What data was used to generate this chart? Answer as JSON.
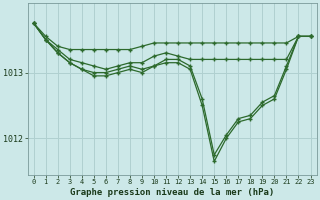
{
  "bg_color": "#cce8e8",
  "grid_color": "#b0d0d0",
  "line_color": "#2d6a2d",
  "title": "Graphe pression niveau de la mer (hPa)",
  "xlim": [
    -0.5,
    23.5
  ],
  "ylim": [
    1011.45,
    1014.05
  ],
  "yticks": [
    1012,
    1013
  ],
  "xticks": [
    0,
    1,
    2,
    3,
    4,
    5,
    6,
    7,
    8,
    9,
    10,
    11,
    12,
    13,
    14,
    15,
    16,
    17,
    18,
    19,
    20,
    21,
    22,
    23
  ],
  "series": [
    {
      "x": [
        0,
        1,
        2,
        3,
        4,
        5,
        6,
        7,
        8,
        9,
        10,
        11,
        12,
        13,
        14,
        15,
        16,
        17,
        18,
        19,
        20,
        21,
        22,
        23
      ],
      "y": [
        1013.75,
        1013.55,
        1013.4,
        1013.35,
        1013.35,
        1013.35,
        1013.35,
        1013.35,
        1013.35,
        1013.4,
        1013.45,
        1013.45,
        1013.45,
        1013.45,
        1013.45,
        1013.45,
        1013.45,
        1013.45,
        1013.45,
        1013.45,
        1013.45,
        1013.45,
        1013.55,
        1013.55
      ]
    },
    {
      "x": [
        0,
        1,
        2,
        3,
        4,
        5,
        6,
        7,
        8,
        9,
        10,
        11,
        12,
        13,
        14,
        15,
        16,
        17,
        18,
        19,
        20,
        21,
        22,
        23
      ],
      "y": [
        1013.75,
        1013.5,
        1013.35,
        1013.2,
        1013.15,
        1013.1,
        1013.05,
        1013.1,
        1013.15,
        1013.15,
        1013.25,
        1013.3,
        1013.25,
        1013.2,
        1013.2,
        1013.2,
        1013.2,
        1013.2,
        1013.2,
        1013.2,
        1013.2,
        1013.2,
        1013.55,
        1013.55
      ]
    },
    {
      "x": [
        0,
        1,
        2,
        3,
        4,
        5,
        6,
        7,
        8,
        9,
        10,
        11,
        12,
        13,
        14,
        15,
        16,
        17,
        18,
        19,
        20,
        21,
        22,
        23
      ],
      "y": [
        1013.75,
        1013.5,
        1013.3,
        1013.15,
        1013.05,
        1013.0,
        1013.0,
        1013.05,
        1013.1,
        1013.05,
        1013.1,
        1013.2,
        1013.2,
        1013.1,
        1012.6,
        1011.75,
        1012.05,
        1012.3,
        1012.35,
        1012.55,
        1012.65,
        1013.1,
        1013.55,
        1013.55
      ]
    },
    {
      "x": [
        0,
        1,
        2,
        3,
        4,
        5,
        6,
        7,
        8,
        9,
        10,
        11,
        12,
        13,
        14,
        15,
        16,
        17,
        18,
        19,
        20,
        21,
        22,
        23
      ],
      "y": [
        1013.75,
        1013.5,
        1013.3,
        1013.15,
        1013.05,
        1012.95,
        1012.95,
        1013.0,
        1013.05,
        1013.0,
        1013.1,
        1013.15,
        1013.15,
        1013.05,
        1012.5,
        1011.65,
        1012.0,
        1012.25,
        1012.3,
        1012.5,
        1012.6,
        1013.05,
        1013.55,
        1013.55
      ]
    }
  ]
}
